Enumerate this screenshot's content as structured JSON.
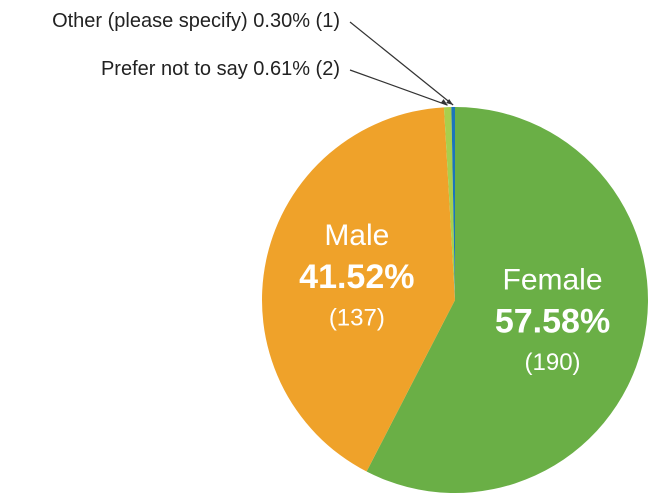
{
  "chart_data": {
    "type": "pie",
    "categories": [
      "Female",
      "Male",
      "Prefer not to say",
      "Other (please specify)"
    ],
    "values": [
      57.58,
      41.52,
      0.61,
      0.3
    ],
    "value_labels": [
      "57.58%",
      "41.52%",
      "0.61%",
      "0.30%"
    ],
    "counts": [
      190,
      137,
      2,
      1
    ],
    "count_labels": [
      "(190)",
      "(137)",
      "(2)",
      "(1)"
    ],
    "colors": [
      "#6aaf46",
      "#efa22a",
      "#a8cf4d",
      "#1b75bb"
    ]
  }
}
